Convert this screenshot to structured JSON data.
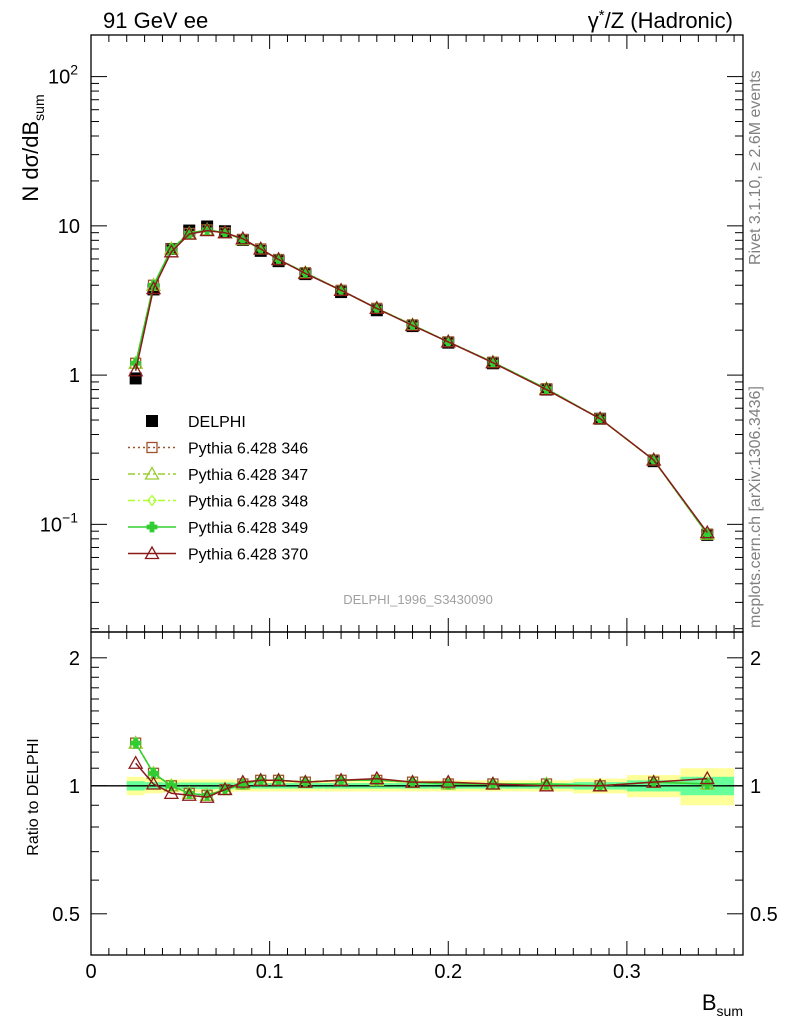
{
  "header": {
    "left": "91 GeV ee",
    "right_prefix": "γ",
    "right_sup": "*",
    "right_rest": "/Z (Hadronic)"
  },
  "side_text": {
    "upper": "Rivet 3.1.10, ≥ 2.6M events",
    "lower": "mcplots.cern.ch [arXiv:1306.3436]"
  },
  "analysis_label": "DELPHI_1996_S3430090",
  "colors": {
    "data": "#000000",
    "p346": "#A0522D",
    "p347": "#9ACD32",
    "p348": "#ADFF2F",
    "p349": "#32CD32",
    "p370": "#8B1A1A",
    "band_outer": "#FFFF99",
    "band_inner": "#66FF99"
  },
  "chart_data": [
    {
      "type": "line",
      "panel": "main",
      "ylabel_main": "N dσ/dB",
      "ylabel_sub": "sum",
      "yscale": "log",
      "xlim": [
        0,
        0.365
      ],
      "ylim": [
        0.019,
        190
      ],
      "yticks": [
        {
          "v": 100,
          "base": "10",
          "exp": "2"
        },
        {
          "v": 10,
          "base": "10",
          "exp": ""
        },
        {
          "v": 1,
          "base": "1",
          "exp": ""
        },
        {
          "v": 0.1,
          "base": "10",
          "exp": "−1"
        }
      ],
      "x": [
        0.025,
        0.035,
        0.045,
        0.055,
        0.065,
        0.075,
        0.085,
        0.095,
        0.105,
        0.12,
        0.14,
        0.16,
        0.18,
        0.2,
        0.225,
        0.255,
        0.285,
        0.315,
        0.345
      ],
      "x_errors": [
        0.005,
        0.005,
        0.005,
        0.005,
        0.005,
        0.005,
        0.005,
        0.005,
        0.005,
        0.01,
        0.01,
        0.01,
        0.01,
        0.01,
        0.015,
        0.015,
        0.015,
        0.015,
        0.015
      ],
      "legend": {
        "placement": "lower-left",
        "entries": [
          {
            "key": "data",
            "label": "DELPHI",
            "marker": "square-filled",
            "line": "none"
          },
          {
            "key": "p346",
            "label": "Pythia 6.428 346",
            "marker": "square-open",
            "line": "dotted"
          },
          {
            "key": "p347",
            "label": "Pythia 6.428 347",
            "marker": "triangle-open",
            "line": "dashdot"
          },
          {
            "key": "p348",
            "label": "Pythia 6.428 348",
            "marker": "diamond-open",
            "line": "dashdot"
          },
          {
            "key": "p349",
            "label": "Pythia 6.428 349",
            "marker": "cross",
            "line": "solid"
          },
          {
            "key": "p370",
            "label": "Pythia 6.428 370",
            "marker": "triangle-open",
            "line": "solid"
          }
        ]
      },
      "series": [
        {
          "key": "data",
          "name": "DELPHI",
          "values": [
            0.95,
            3.75,
            7.0,
            9.3,
            9.9,
            9.2,
            8.05,
            6.8,
            5.8,
            4.75,
            3.6,
            2.72,
            2.13,
            1.65,
            1.2,
            0.8,
            0.51,
            0.265,
            0.085
          ]
        },
        {
          "key": "p346",
          "name": "Pythia 6.428 346",
          "values": [
            1.2,
            4.0,
            7.0,
            8.9,
            9.4,
            9.0,
            8.1,
            7.0,
            5.95,
            4.85,
            3.7,
            2.8,
            2.17,
            1.67,
            1.22,
            0.81,
            0.51,
            0.27,
            0.086
          ]
        },
        {
          "key": "p347",
          "name": "Pythia 6.428 347",
          "values": [
            1.2,
            4.0,
            7.0,
            8.9,
            9.4,
            9.0,
            8.1,
            7.0,
            5.95,
            4.85,
            3.7,
            2.8,
            2.17,
            1.67,
            1.22,
            0.81,
            0.51,
            0.27,
            0.086
          ]
        },
        {
          "key": "p348",
          "name": "Pythia 6.428 348",
          "values": [
            1.2,
            4.0,
            7.0,
            8.9,
            9.4,
            9.0,
            8.1,
            7.0,
            5.95,
            4.85,
            3.7,
            2.8,
            2.17,
            1.67,
            1.22,
            0.81,
            0.51,
            0.27,
            0.086
          ]
        },
        {
          "key": "p349",
          "name": "Pythia 6.428 349",
          "values": [
            1.2,
            4.0,
            7.0,
            8.9,
            9.4,
            9.0,
            8.1,
            7.0,
            5.95,
            4.85,
            3.7,
            2.8,
            2.17,
            1.67,
            1.22,
            0.81,
            0.51,
            0.27,
            0.086
          ]
        },
        {
          "key": "p370",
          "name": "Pythia 6.428 370",
          "values": [
            1.07,
            3.8,
            6.7,
            8.8,
            9.3,
            9.0,
            8.2,
            7.0,
            5.95,
            4.8,
            3.7,
            2.8,
            2.15,
            1.67,
            1.21,
            0.8,
            0.51,
            0.27,
            0.088
          ]
        }
      ]
    },
    {
      "type": "line",
      "panel": "ratio",
      "ylabel": "Ratio to DELPHI",
      "xlabel_main": "B",
      "xlabel_sub": "sum",
      "xlim": [
        0,
        0.365
      ],
      "ylim": [
        0.4,
        2.3
      ],
      "yscale": "log",
      "yticks": [
        {
          "v": 2,
          "label": "2"
        },
        {
          "v": 1,
          "label": "1"
        },
        {
          "v": 0.5,
          "label": "0.5"
        }
      ],
      "xticks": [
        {
          "v": 0,
          "label": "0"
        },
        {
          "v": 0.1,
          "label": "0.1"
        },
        {
          "v": 0.2,
          "label": "0.2"
        },
        {
          "v": 0.3,
          "label": "0.3"
        }
      ],
      "x": [
        0.025,
        0.035,
        0.045,
        0.055,
        0.065,
        0.075,
        0.085,
        0.095,
        0.105,
        0.12,
        0.14,
        0.16,
        0.18,
        0.2,
        0.225,
        0.255,
        0.285,
        0.315,
        0.345
      ],
      "band_outer": [
        0.05,
        0.04,
        0.035,
        0.035,
        0.035,
        0.035,
        0.03,
        0.03,
        0.03,
        0.03,
        0.03,
        0.03,
        0.03,
        0.03,
        0.03,
        0.03,
        0.04,
        0.06,
        0.1
      ],
      "band_inner": [
        0.025,
        0.02,
        0.018,
        0.018,
        0.018,
        0.018,
        0.015,
        0.015,
        0.015,
        0.015,
        0.015,
        0.015,
        0.015,
        0.015,
        0.015,
        0.015,
        0.02,
        0.03,
        0.05
      ],
      "series": [
        {
          "key": "p346",
          "name": "Pythia 6.428 346",
          "values": [
            1.26,
            1.07,
            1.0,
            0.96,
            0.95,
            0.98,
            1.01,
            1.03,
            1.03,
            1.02,
            1.03,
            1.03,
            1.02,
            1.01,
            1.01,
            1.01,
            1.0,
            1.02,
            1.01
          ]
        },
        {
          "key": "p347",
          "name": "Pythia 6.428 347",
          "values": [
            1.26,
            1.07,
            1.0,
            0.96,
            0.95,
            0.98,
            1.01,
            1.03,
            1.03,
            1.02,
            1.03,
            1.03,
            1.02,
            1.01,
            1.01,
            1.01,
            1.0,
            1.02,
            1.01
          ]
        },
        {
          "key": "p348",
          "name": "Pythia 6.428 348",
          "values": [
            1.26,
            1.07,
            1.0,
            0.96,
            0.95,
            0.98,
            1.01,
            1.03,
            1.03,
            1.02,
            1.03,
            1.03,
            1.02,
            1.01,
            1.01,
            1.01,
            1.0,
            1.02,
            1.01
          ]
        },
        {
          "key": "p349",
          "name": "Pythia 6.428 349",
          "values": [
            1.26,
            1.07,
            1.0,
            0.96,
            0.95,
            0.98,
            1.01,
            1.03,
            1.03,
            1.02,
            1.03,
            1.03,
            1.02,
            1.01,
            1.01,
            1.01,
            1.0,
            1.02,
            1.01
          ]
        },
        {
          "key": "p370",
          "name": "Pythia 6.428 370",
          "values": [
            1.13,
            1.01,
            0.96,
            0.95,
            0.94,
            0.98,
            1.02,
            1.03,
            1.03,
            1.02,
            1.03,
            1.04,
            1.02,
            1.02,
            1.01,
            1.0,
            1.0,
            1.02,
            1.04
          ]
        }
      ]
    }
  ]
}
